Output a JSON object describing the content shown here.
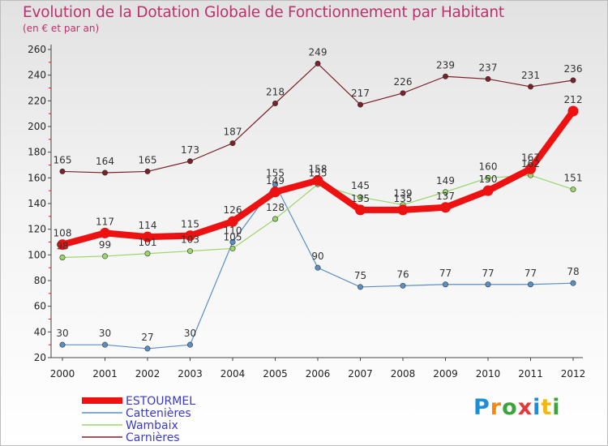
{
  "chart_data": {
    "type": "line",
    "title": "Evolution de la Dotation Globale de Fonctionnement par Habitant",
    "subtitle": "(en € et par an)",
    "categories": [
      "2000",
      "2001",
      "2002",
      "2003",
      "2004",
      "2005",
      "2006",
      "2007",
      "2008",
      "2009",
      "2010",
      "2011",
      "2012"
    ],
    "ylim": [
      20,
      260
    ],
    "yticks": [
      20,
      40,
      60,
      80,
      100,
      120,
      140,
      160,
      180,
      200,
      220,
      240,
      260
    ],
    "ytick_labels": [
      "20",
      "40",
      "60",
      "80",
      "100",
      "120",
      "140",
      "160",
      "180",
      "200",
      "220",
      "240",
      "260"
    ],
    "grid": false,
    "legend_position": "bottom-left",
    "series": [
      {
        "name": "Carnières",
        "color": "#7a2028",
        "values": [
          165,
          164,
          165,
          173,
          187,
          218,
          249,
          217,
          226,
          239,
          237,
          231,
          236
        ],
        "labels": [
          "165",
          "164",
          "165",
          "173",
          "187",
          "218",
          "249",
          "217",
          "226",
          "239",
          "237",
          "231",
          "236"
        ]
      },
      {
        "name": "Cattenières",
        "color": "#5b8fc4",
        "values": [
          30,
          30,
          27,
          30,
          110,
          155,
          90,
          75,
          76,
          77,
          77,
          77,
          78
        ],
        "labels": [
          "30",
          "30",
          "27",
          "30",
          "110",
          "155",
          "90",
          "75",
          "76",
          "77",
          "77",
          "77",
          "78"
        ]
      },
      {
        "name": "Wambaix",
        "color": "#9ad66a",
        "values": [
          98,
          99,
          101,
          103,
          105,
          128,
          155,
          145,
          139,
          149,
          160,
          162,
          151
        ],
        "labels": [
          "98",
          "99",
          "101",
          "103",
          "105",
          "128",
          "155",
          "145",
          "139",
          "149",
          "160",
          "162",
          "151"
        ]
      },
      {
        "name": "ESTOURMEL",
        "color": "#ee1111",
        "values": [
          108,
          117,
          114,
          115,
          126,
          149,
          158,
          135,
          135,
          137,
          150,
          167,
          212
        ],
        "labels": [
          "108",
          "117",
          "114",
          "115",
          "126",
          "149",
          "158",
          "135",
          "135",
          "137",
          "150",
          "167",
          "212"
        ]
      }
    ]
  },
  "logo": {
    "letters": [
      "P",
      "r",
      "o",
      "x",
      "i",
      "t",
      "i"
    ],
    "colors": [
      "#1e8fd6",
      "#f08a12",
      "#3ba43b",
      "#e23a3a",
      "#1e8fd6",
      "#f0b812",
      "#3ba43b"
    ]
  }
}
